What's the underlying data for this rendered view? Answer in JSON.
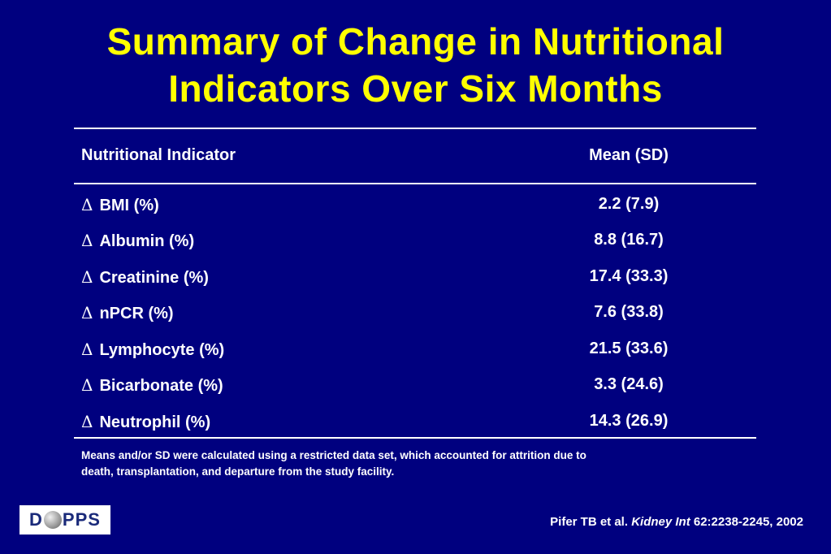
{
  "title": {
    "line1": "Summary of Change in Nutritional",
    "line2": "Indicators Over Six Months"
  },
  "table": {
    "headers": {
      "indicator": "Nutritional Indicator",
      "value": "Mean (SD)"
    },
    "delta_symbol": "Δ",
    "rows": [
      {
        "label": "BMI (%)",
        "value": "2.2 (7.9)"
      },
      {
        "label": "Albumin (%)",
        "value": "8.8 (16.7)"
      },
      {
        "label": "Creatinine (%)",
        "value": "17.4 (33.3)"
      },
      {
        "label": "nPCR (%)",
        "value": "7.6 (33.8)"
      },
      {
        "label": "Lymphocyte (%)",
        "value": "21.5 (33.6)"
      },
      {
        "label": "Bicarbonate (%)",
        "value": "3.3 (24.6)"
      },
      {
        "label": "Neutrophil (%)",
        "value": "14.3 (26.9)"
      }
    ]
  },
  "footnote": {
    "line1": "Means and/or SD were calculated using a restricted data set, which accounted for attrition due to",
    "line2": "death, transplantation, and departure from the study facility."
  },
  "logo": {
    "left": "D",
    "right": "PPS",
    "icon": "globe-icon"
  },
  "citation": {
    "authors": "Pifer TB et al. ",
    "journal": "Kidney Int",
    "details": " 62:2238-2245, 2002"
  },
  "colors": {
    "background": "#00007f",
    "title": "#ffff00",
    "text": "#ffffff"
  }
}
